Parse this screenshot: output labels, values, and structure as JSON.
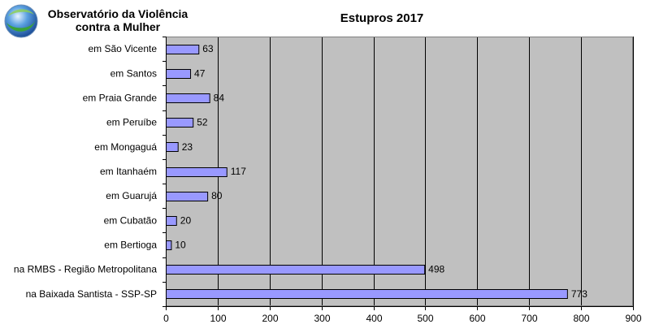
{
  "header": {
    "org_line1": "Observatório da Violência",
    "org_line2": "contra a Mulher",
    "logo_icon": "globe-logo-icon"
  },
  "colors": {
    "plot_background": "#c0c0c0",
    "bar_fill": "#9999ff",
    "bar_stroke": "#000000"
  },
  "chart_data": {
    "type": "bar",
    "orientation": "horizontal",
    "title": "Estupros 2017",
    "categories": [
      "em São Vicente",
      "em Santos",
      "em Praia Grande",
      "em Peruíbe",
      "em Mongaguá",
      "em Itanhaém",
      "em Guarujá",
      "em Cubatão",
      "em Bertioga",
      "na RMBS - Região Metropolitana",
      "na Baixada Santista - SSP-SP"
    ],
    "values": [
      63,
      47,
      84,
      52,
      23,
      117,
      80,
      20,
      10,
      498,
      773
    ],
    "data_labels": [
      "63",
      "47",
      "84",
      "52",
      "23",
      "117",
      "80",
      "20",
      "10",
      "498",
      "773"
    ],
    "xlim": [
      0,
      900
    ],
    "x_ticks": [
      0,
      100,
      200,
      300,
      400,
      500,
      600,
      700,
      800,
      900
    ],
    "x_tick_labels": [
      "0",
      "100",
      "200",
      "300",
      "400",
      "500",
      "600",
      "700",
      "800",
      "900"
    ],
    "xlabel": "",
    "ylabel": "",
    "grid": "vertical",
    "legend": "none"
  }
}
